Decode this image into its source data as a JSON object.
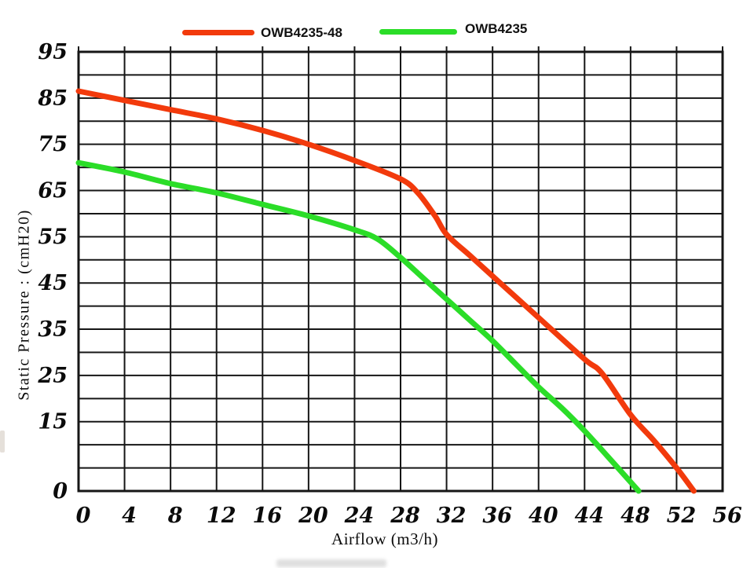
{
  "legend": {
    "items": [
      {
        "label": "OWB4235-48",
        "color": "#f23a0c"
      },
      {
        "label": "OWB4235",
        "color": "#2bdd28"
      }
    ]
  },
  "axes": {
    "x_title": "Airflow (m3/h)",
    "y_title": "Static Pressure : (cmH20)"
  },
  "chart_data": {
    "type": "line",
    "title": "",
    "xlabel": "Airflow (m3/h)",
    "ylabel": "Static Pressure : (cmH20)",
    "xlim": [
      0,
      56
    ],
    "ylim": [
      0,
      95
    ],
    "grid": true,
    "x_grid_step": 4,
    "y_grid_step": 5,
    "legend_position": "top",
    "x_tick_values": [
      0,
      4,
      8,
      12,
      16,
      20,
      24,
      28,
      32,
      36,
      40,
      44,
      48,
      52,
      56
    ],
    "x_tick_labels": [
      "0",
      "4",
      "8",
      "12",
      "16",
      "20",
      "24",
      "28",
      "32",
      "36",
      "40",
      "44",
      "48",
      "52",
      "56"
    ],
    "y_tick_values": [
      95,
      85,
      75,
      65,
      55,
      45,
      35,
      25,
      15,
      0
    ],
    "y_tick_labels": [
      "95",
      "85",
      "75",
      "65",
      "55",
      "45",
      "35",
      "25",
      "15",
      "0"
    ],
    "grid_color": "#161616",
    "series": [
      {
        "name": "OWB4235-48",
        "color": "#f23a0c",
        "points": [
          [
            0,
            86.5
          ],
          [
            4,
            84.5
          ],
          [
            8,
            82.5
          ],
          [
            12,
            80.5
          ],
          [
            16,
            78
          ],
          [
            20,
            75
          ],
          [
            24,
            71.5
          ],
          [
            28,
            67.5
          ],
          [
            29.5,
            64.5
          ],
          [
            31,
            59.5
          ],
          [
            32,
            55.5
          ],
          [
            34,
            51
          ],
          [
            36,
            46.5
          ],
          [
            40,
            37.5
          ],
          [
            44,
            28.5
          ],
          [
            45.5,
            25.5
          ],
          [
            48,
            16.5
          ],
          [
            50,
            11
          ],
          [
            52,
            5
          ],
          [
            53.5,
            0
          ]
        ]
      },
      {
        "name": "OWB4235",
        "color": "#2bdd28",
        "points": [
          [
            0,
            71
          ],
          [
            4,
            69
          ],
          [
            8,
            66.5
          ],
          [
            12,
            64.5
          ],
          [
            16,
            62
          ],
          [
            20,
            59.5
          ],
          [
            24,
            56.5
          ],
          [
            26,
            54.5
          ],
          [
            28,
            50.5
          ],
          [
            30,
            46
          ],
          [
            32,
            41.5
          ],
          [
            34,
            37
          ],
          [
            36,
            32.5
          ],
          [
            38,
            27.5
          ],
          [
            40,
            22.5
          ],
          [
            42,
            18
          ],
          [
            44,
            13
          ],
          [
            46,
            7.5
          ],
          [
            48.7,
            0
          ]
        ]
      }
    ]
  }
}
